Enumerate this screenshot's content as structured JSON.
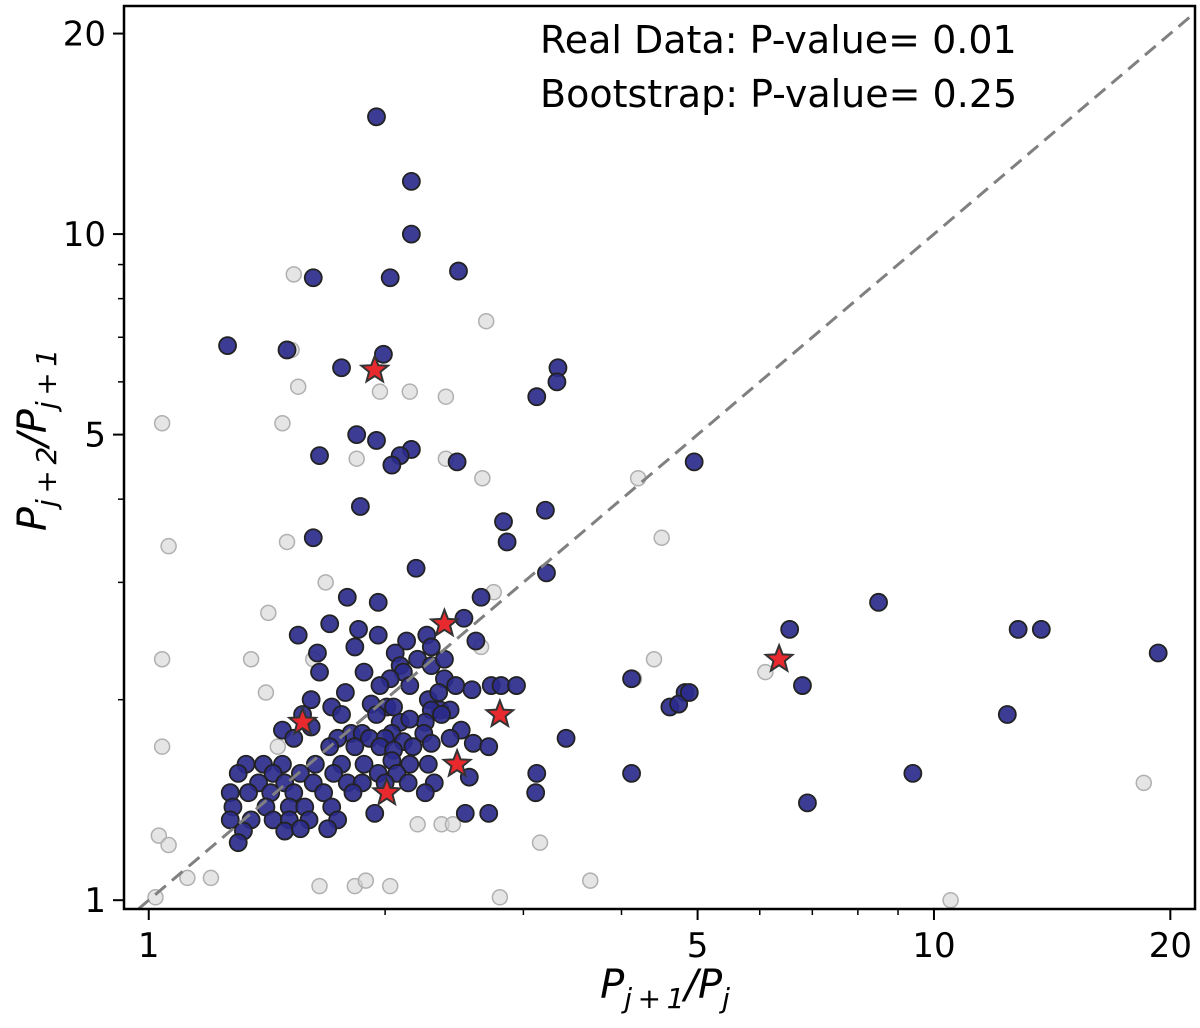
{
  "chart_data": {
    "type": "scatter",
    "xscale": "log",
    "yscale": "log",
    "xlim": [
      0.93,
      21.5
    ],
    "ylim": [
      0.97,
      22
    ],
    "grid": false,
    "annotations": [
      "Real Data: P-value= 0.01",
      "Bootstrap: P-value= 0.25"
    ],
    "xlabel": {
      "base1": "P",
      "sub1": "j + 1",
      "slash": "/",
      "base2": "P",
      "sub2": "j"
    },
    "ylabel": {
      "base1": "P",
      "sub1": "j + 2",
      "slash": "/",
      "base2": "P",
      "sub2": "j + 1"
    },
    "xticks": [
      1,
      5,
      10,
      20
    ],
    "yticks": [
      1,
      5,
      10,
      20
    ],
    "reference_line": {
      "type": "y=x",
      "style": "dashed",
      "color": "#808080"
    },
    "colors": {
      "bootstrap": "#d3d3d3",
      "real": "#2b2b8c",
      "highlight": "#e8292e"
    },
    "series": [
      {
        "marker": "circle",
        "color": "#d3d3d3",
        "points": [
          [
            1.04,
            5.2
          ],
          [
            1.06,
            3.4
          ],
          [
            1.04,
            2.3
          ],
          [
            1.04,
            1.7
          ],
          [
            1.03,
            1.25
          ],
          [
            1.06,
            1.21
          ],
          [
            1.02,
            1.01
          ],
          [
            1.12,
            1.08
          ],
          [
            1.2,
            1.08
          ],
          [
            1.53,
            8.7
          ],
          [
            1.52,
            6.7
          ],
          [
            1.55,
            5.9
          ],
          [
            1.48,
            5.2
          ],
          [
            1.5,
            3.45
          ],
          [
            1.42,
            2.7
          ],
          [
            1.46,
            1.7
          ],
          [
            1.41,
            2.05
          ],
          [
            1.35,
            2.3
          ],
          [
            1.68,
            3.0
          ],
          [
            1.62,
            2.3
          ],
          [
            1.84,
            4.6
          ],
          [
            1.97,
            5.8
          ],
          [
            2.15,
            5.8
          ],
          [
            2.39,
            5.7
          ],
          [
            2.39,
            4.6
          ],
          [
            2.66,
            4.3
          ],
          [
            2.69,
            7.4
          ],
          [
            1.86,
            1.5
          ],
          [
            1.88,
            1.5
          ],
          [
            2.2,
            1.3
          ],
          [
            2.36,
            1.3
          ],
          [
            2.44,
            1.3
          ],
          [
            2.65,
            2.4
          ],
          [
            2.75,
            2.9
          ],
          [
            1.65,
            1.05
          ],
          [
            1.83,
            1.05
          ],
          [
            1.89,
            1.07
          ],
          [
            2.03,
            1.05
          ],
          [
            2.8,
            1.01
          ],
          [
            3.15,
            1.22
          ],
          [
            3.65,
            1.07
          ],
          [
            4.2,
            4.3
          ],
          [
            4.5,
            3.5
          ],
          [
            4.4,
            2.3
          ],
          [
            4.15,
            2.15
          ],
          [
            6.1,
            2.2
          ],
          [
            10.5,
            1.0
          ],
          [
            18.5,
            1.5
          ]
        ]
      },
      {
        "marker": "circle",
        "color": "#2b2b8c",
        "points": [
          [
            1.95,
            15.0
          ],
          [
            2.16,
            12.0
          ],
          [
            2.16,
            10.0
          ],
          [
            2.48,
            8.8
          ],
          [
            2.03,
            8.6
          ],
          [
            1.62,
            8.6
          ],
          [
            1.26,
            6.8
          ],
          [
            1.5,
            6.7
          ],
          [
            1.76,
            6.3
          ],
          [
            1.99,
            6.6
          ],
          [
            3.32,
            6.3
          ],
          [
            3.31,
            6.0
          ],
          [
            3.12,
            5.7
          ],
          [
            1.84,
            5.0
          ],
          [
            1.95,
            4.9
          ],
          [
            2.16,
            4.75
          ],
          [
            2.09,
            4.65
          ],
          [
            2.04,
            4.5
          ],
          [
            1.65,
            4.65
          ],
          [
            2.47,
            4.55
          ],
          [
            1.86,
            3.9
          ],
          [
            2.83,
            3.7
          ],
          [
            2.86,
            3.45
          ],
          [
            3.2,
            3.85
          ],
          [
            4.95,
            4.55
          ],
          [
            1.62,
            3.5
          ],
          [
            2.19,
            3.15
          ],
          [
            3.21,
            3.1
          ],
          [
            1.79,
            2.85
          ],
          [
            1.96,
            2.8
          ],
          [
            2.65,
            2.85
          ],
          [
            2.52,
            2.65
          ],
          [
            1.7,
            2.6
          ],
          [
            1.85,
            2.55
          ],
          [
            1.96,
            2.5
          ],
          [
            1.55,
            2.5
          ],
          [
            2.26,
            2.5
          ],
          [
            2.13,
            2.45
          ],
          [
            1.83,
            2.4
          ],
          [
            2.29,
            2.4
          ],
          [
            2.06,
            2.35
          ],
          [
            1.64,
            2.35
          ],
          [
            2.2,
            2.3
          ],
          [
            2.09,
            2.25
          ],
          [
            2.29,
            2.25
          ],
          [
            2.38,
            2.3
          ],
          [
            2.61,
            2.45
          ],
          [
            2.11,
            2.2
          ],
          [
            2.03,
            2.15
          ],
          [
            2.38,
            2.15
          ],
          [
            1.65,
            2.2
          ],
          [
            1.88,
            2.2
          ],
          [
            1.97,
            2.1
          ],
          [
            2.46,
            2.1
          ],
          [
            2.15,
            2.1
          ],
          [
            1.78,
            2.05
          ],
          [
            2.27,
            2.0
          ],
          [
            2.34,
            2.05
          ],
          [
            1.61,
            2.0
          ],
          [
            1.92,
            1.97
          ],
          [
            2.01,
            1.95
          ],
          [
            2.58,
            2.07
          ],
          [
            2.73,
            2.1
          ],
          [
            2.81,
            2.1
          ],
          [
            2.94,
            2.1
          ],
          [
            1.71,
            1.95
          ],
          [
            2.05,
            1.95
          ],
          [
            2.35,
            1.93
          ],
          [
            2.29,
            1.93
          ],
          [
            2.42,
            1.93
          ],
          [
            1.57,
            1.9
          ],
          [
            1.76,
            1.9
          ],
          [
            1.95,
            1.9
          ],
          [
            2.09,
            1.85
          ],
          [
            2.25,
            1.85
          ],
          [
            2.15,
            1.87
          ],
          [
            2.36,
            1.9
          ],
          [
            2.5,
            1.8
          ],
          [
            1.48,
            1.8
          ],
          [
            1.61,
            1.82
          ],
          [
            1.81,
            1.78
          ],
          [
            1.87,
            1.78
          ],
          [
            2.04,
            1.78
          ],
          [
            2.24,
            1.78
          ],
          [
            1.53,
            1.75
          ],
          [
            1.74,
            1.75
          ],
          [
            1.91,
            1.75
          ],
          [
            2.0,
            1.75
          ],
          [
            2.11,
            1.73
          ],
          [
            2.29,
            1.72
          ],
          [
            2.42,
            1.75
          ],
          [
            2.59,
            1.72
          ],
          [
            1.7,
            1.7
          ],
          [
            1.83,
            1.7
          ],
          [
            1.97,
            1.7
          ],
          [
            2.05,
            1.68
          ],
          [
            2.17,
            1.7
          ],
          [
            2.71,
            1.7
          ],
          [
            3.4,
            1.75
          ],
          [
            1.33,
            1.6
          ],
          [
            1.4,
            1.6
          ],
          [
            1.48,
            1.6
          ],
          [
            1.63,
            1.6
          ],
          [
            1.76,
            1.6
          ],
          [
            1.88,
            1.6
          ],
          [
            2.04,
            1.62
          ],
          [
            2.15,
            1.6
          ],
          [
            2.27,
            1.6
          ],
          [
            1.3,
            1.55
          ],
          [
            1.44,
            1.55
          ],
          [
            1.56,
            1.55
          ],
          [
            1.72,
            1.55
          ],
          [
            1.96,
            1.55
          ],
          [
            2.07,
            1.55
          ],
          [
            2.56,
            1.53
          ],
          [
            3.12,
            1.55
          ],
          [
            4.12,
            1.55
          ],
          [
            1.38,
            1.5
          ],
          [
            1.49,
            1.5
          ],
          [
            1.62,
            1.5
          ],
          [
            1.79,
            1.5
          ],
          [
            1.87,
            1.5
          ],
          [
            2.0,
            1.5
          ],
          [
            2.14,
            1.5
          ],
          [
            2.31,
            1.5
          ],
          [
            1.27,
            1.45
          ],
          [
            1.34,
            1.45
          ],
          [
            1.43,
            1.45
          ],
          [
            1.53,
            1.45
          ],
          [
            1.67,
            1.45
          ],
          [
            1.82,
            1.45
          ],
          [
            2.25,
            1.45
          ],
          [
            3.11,
            1.45
          ],
          [
            1.28,
            1.38
          ],
          [
            1.41,
            1.38
          ],
          [
            1.51,
            1.38
          ],
          [
            1.58,
            1.38
          ],
          [
            1.71,
            1.38
          ],
          [
            1.94,
            1.35
          ],
          [
            2.53,
            1.35
          ],
          [
            1.27,
            1.32
          ],
          [
            1.35,
            1.32
          ],
          [
            1.44,
            1.32
          ],
          [
            1.51,
            1.32
          ],
          [
            1.6,
            1.32
          ],
          [
            1.74,
            1.32
          ],
          [
            2.71,
            1.35
          ],
          [
            1.32,
            1.27
          ],
          [
            1.49,
            1.27
          ],
          [
            1.56,
            1.28
          ],
          [
            1.69,
            1.28
          ],
          [
            1.3,
            1.22
          ],
          [
            4.12,
            2.15
          ],
          [
            4.61,
            1.95
          ],
          [
            4.82,
            2.05
          ],
          [
            4.73,
            1.97
          ],
          [
            4.88,
            2.05
          ],
          [
            6.55,
            2.55
          ],
          [
            6.8,
            2.1
          ],
          [
            6.9,
            1.4
          ],
          [
            8.5,
            2.8
          ],
          [
            9.4,
            1.55
          ],
          [
            12.4,
            1.9
          ],
          [
            12.8,
            2.55
          ],
          [
            13.7,
            2.55
          ],
          [
            19.3,
            2.35
          ]
        ]
      },
      {
        "marker": "star",
        "color": "#e8292e",
        "points": [
          [
            1.94,
            6.25
          ],
          [
            2.38,
            2.6
          ],
          [
            6.35,
            2.3
          ],
          [
            1.57,
            1.85
          ],
          [
            2.8,
            1.9
          ],
          [
            2.47,
            1.6
          ],
          [
            2.01,
            1.45
          ]
        ]
      }
    ]
  }
}
